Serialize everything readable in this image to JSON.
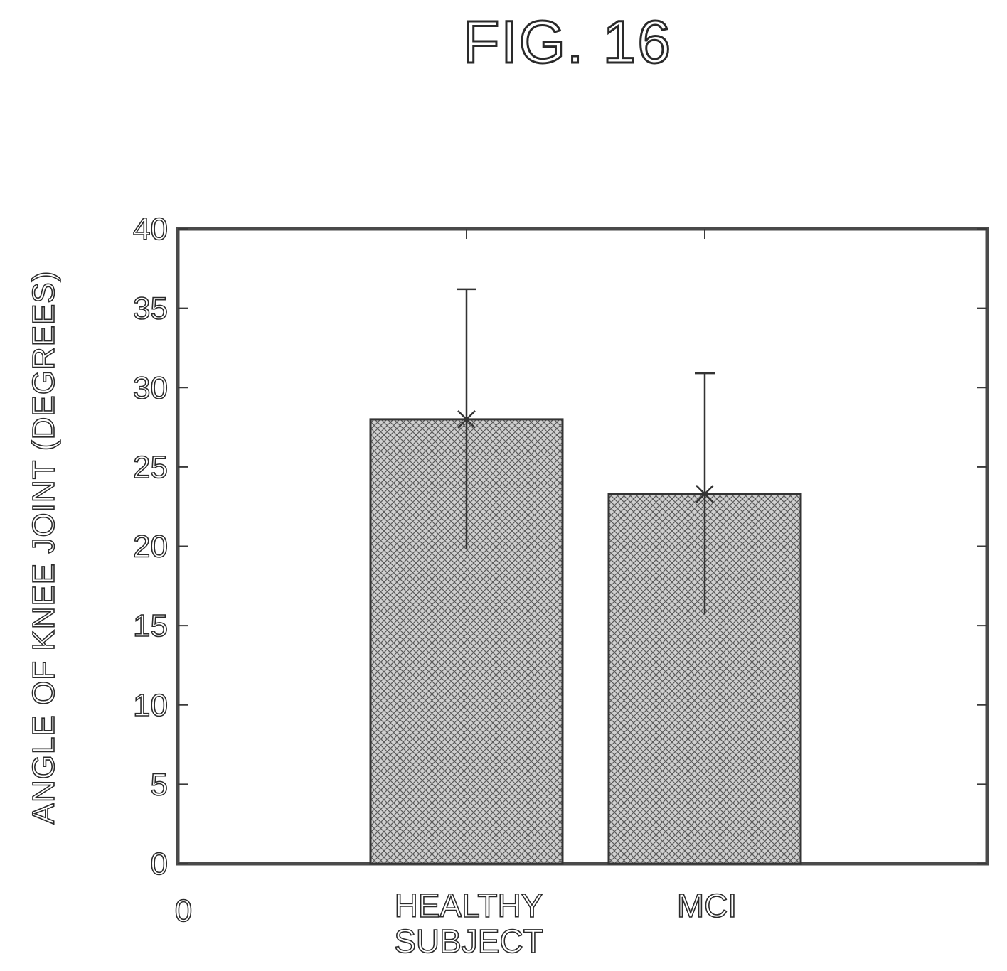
{
  "figure_title": "FIG. 16",
  "chart_data": {
    "type": "bar",
    "title": "FIG. 16",
    "ylabel": "ANGLE OF KNEE JOINT (DEGREES)",
    "xlabel": "",
    "ylim": [
      0,
      40
    ],
    "yticks": [
      "0",
      "5",
      "10",
      "15",
      "20",
      "25",
      "30",
      "35",
      "40"
    ],
    "x_origin_label": "0",
    "categories": [
      {
        "lines": [
          "HEALTHY",
          "SUBJECT"
        ],
        "value": 28,
        "error": 8.2
      },
      {
        "lines": [
          "MCI"
        ],
        "value": 23.3,
        "error": 7.6
      }
    ],
    "grid": false,
    "legend": "none",
    "bar_pattern": "crosshatch"
  }
}
